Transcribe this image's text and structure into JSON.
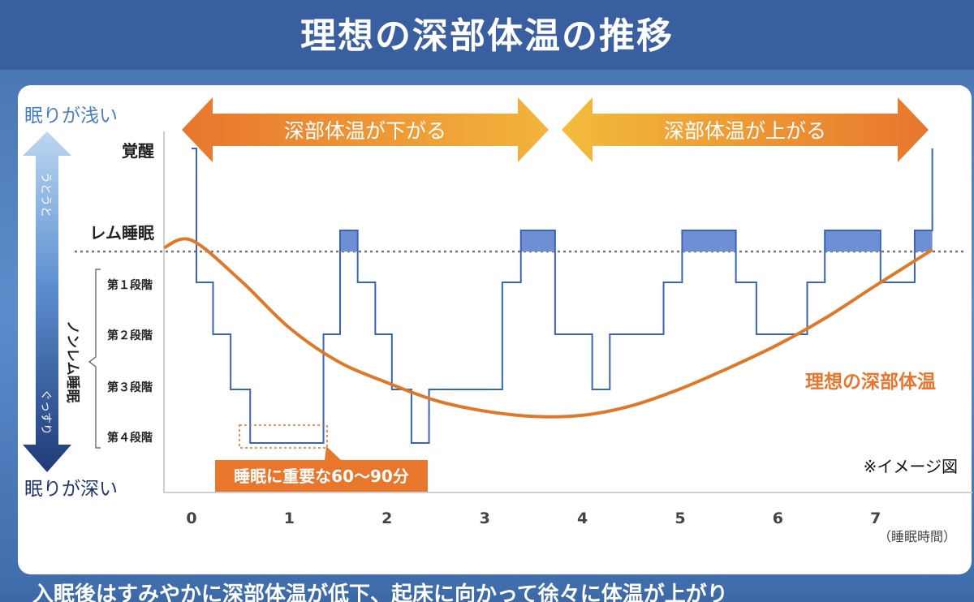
{
  "title": "理想の深部体温の推移",
  "bottom_text": "入眠後はすみやかに深部体温が低下、起床に向かって徐々に体温が上がり",
  "chart_data": {
    "type": "line",
    "xlabel": "（睡眠時間）",
    "x_ticks": [
      "0",
      "1",
      "2",
      "3",
      "4",
      "5",
      "6",
      "7"
    ],
    "y_levels": [
      "覚醒",
      "レム睡眠",
      "第１段階",
      "第２段階",
      "第３段階",
      "第４段階"
    ],
    "axis_top_label": "眠りが浅い",
    "axis_bottom_label": "眠りが深い",
    "arrow_top_text": "うとうと",
    "arrow_bottom_text": "ぐっすり",
    "nonrem_label": "ノンレム睡眠",
    "phase_down": "深部体温が下がる",
    "phase_up": "深部体温が上がる",
    "annotation_important": "睡眠に重要な60〜90分",
    "image_note": "※イメージ図",
    "temp_series_name": "理想の深部体温",
    "colors": {
      "hypnogram": "#3a64b8",
      "rem_fill": "#6f8fd4",
      "temp_curve": "#e0782a",
      "label_orange": "#e8762d",
      "axis_blue": "#4a7fc4",
      "dark_navy": "#22356b"
    },
    "hypnogram": [
      [
        0,
        "覚醒"
      ],
      [
        0.05,
        "第１段階"
      ],
      [
        0.22,
        "第２段階"
      ],
      [
        0.4,
        "第３段階"
      ],
      [
        0.6,
        "第４段階"
      ],
      [
        1.35,
        "第２段階"
      ],
      [
        1.52,
        "レム睡眠"
      ],
      [
        1.7,
        "第１段階"
      ],
      [
        1.88,
        "第２段階"
      ],
      [
        2.05,
        "第３段階"
      ],
      [
        2.25,
        "第４段階"
      ],
      [
        2.43,
        "第３段階"
      ],
      [
        3.18,
        "第１段階"
      ],
      [
        3.37,
        "レム睡眠"
      ],
      [
        3.72,
        "第２段階"
      ],
      [
        4.1,
        "第３段階"
      ],
      [
        4.28,
        "第２段階"
      ],
      [
        4.83,
        "第１段階"
      ],
      [
        5.02,
        "レム睡眠"
      ],
      [
        5.57,
        "第１段階"
      ],
      [
        5.78,
        "第２段階"
      ],
      [
        6.3,
        "第１段階"
      ],
      [
        6.48,
        "レム睡眠"
      ],
      [
        7.05,
        "第１段階"
      ],
      [
        7.4,
        "レム睡眠"
      ],
      [
        7.58,
        "覚醒"
      ],
      [
        7.58,
        "覚醒"
      ]
    ],
    "temperature_curve": [
      [
        -0.28,
        0.76
      ],
      [
        0.0,
        0.83
      ],
      [
        0.5,
        0.45
      ],
      [
        1.0,
        0.0
      ],
      [
        1.5,
        -0.32
      ],
      [
        2.0,
        -0.52
      ],
      [
        2.5,
        -0.69
      ],
      [
        3.0,
        -0.79
      ],
      [
        3.5,
        -0.84
      ],
      [
        4.0,
        -0.83
      ],
      [
        4.5,
        -0.74
      ],
      [
        5.0,
        -0.58
      ],
      [
        5.5,
        -0.38
      ],
      [
        6.0,
        -0.16
      ],
      [
        6.5,
        0.1
      ],
      [
        7.0,
        0.4
      ],
      [
        7.58,
        0.74
      ]
    ]
  }
}
